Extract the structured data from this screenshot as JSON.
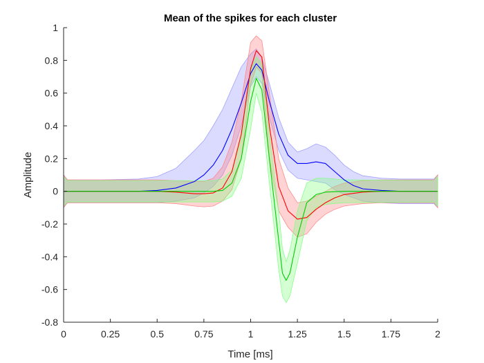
{
  "chart_data": {
    "type": "line",
    "title": "Mean of the spikes for each cluster",
    "xlabel": "Time [ms]",
    "ylabel": "Amplitude",
    "xlim": [
      0,
      2
    ],
    "ylim": [
      -0.8,
      1
    ],
    "xticks": [
      0,
      0.25,
      0.5,
      0.75,
      1,
      1.25,
      1.5,
      1.75,
      2
    ],
    "xtick_labels": [
      "0",
      "0.25",
      "0.5",
      "0.75",
      "1",
      "1.25",
      "1.5",
      "1.75",
      "2"
    ],
    "yticks": [
      -0.8,
      -0.6,
      -0.4,
      -0.2,
      0,
      0.2,
      0.4,
      0.6,
      0.8,
      1
    ],
    "ytick_labels": [
      "-0.8",
      "-0.6",
      "-0.4",
      "-0.2",
      "0",
      "0.2",
      "0.4",
      "0.6",
      "0.8",
      "1"
    ],
    "grid": false,
    "legend": "none",
    "series": [
      {
        "color": "#0000ff",
        "band_color": "#9999ff",
        "mean": [
          [
            0,
            0
          ],
          [
            0.2,
            0
          ],
          [
            0.4,
            0
          ],
          [
            0.5,
            0.005
          ],
          [
            0.6,
            0.02
          ],
          [
            0.7,
            0.06
          ],
          [
            0.75,
            0.1
          ],
          [
            0.8,
            0.16
          ],
          [
            0.85,
            0.25
          ],
          [
            0.9,
            0.38
          ],
          [
            0.95,
            0.54
          ],
          [
            1.0,
            0.72
          ],
          [
            1.03,
            0.78
          ],
          [
            1.06,
            0.74
          ],
          [
            1.1,
            0.55
          ],
          [
            1.15,
            0.35
          ],
          [
            1.2,
            0.22
          ],
          [
            1.25,
            0.17
          ],
          [
            1.3,
            0.17
          ],
          [
            1.35,
            0.18
          ],
          [
            1.4,
            0.17
          ],
          [
            1.45,
            0.12
          ],
          [
            1.5,
            0.07
          ],
          [
            1.55,
            0.035
          ],
          [
            1.6,
            0.015
          ],
          [
            1.7,
            0.005
          ],
          [
            1.8,
            0
          ],
          [
            2.0,
            0
          ]
        ],
        "upper": [
          [
            0,
            0.1
          ],
          [
            0.02,
            0.07
          ],
          [
            0.2,
            0.07
          ],
          [
            0.4,
            0.075
          ],
          [
            0.5,
            0.09
          ],
          [
            0.6,
            0.14
          ],
          [
            0.7,
            0.25
          ],
          [
            0.75,
            0.31
          ],
          [
            0.8,
            0.4
          ],
          [
            0.85,
            0.5
          ],
          [
            0.9,
            0.63
          ],
          [
            0.95,
            0.76
          ],
          [
            1.0,
            0.84
          ],
          [
            1.03,
            0.87
          ],
          [
            1.06,
            0.82
          ],
          [
            1.1,
            0.66
          ],
          [
            1.15,
            0.45
          ],
          [
            1.2,
            0.3
          ],
          [
            1.25,
            0.24
          ],
          [
            1.3,
            0.26
          ],
          [
            1.35,
            0.29
          ],
          [
            1.4,
            0.27
          ],
          [
            1.45,
            0.22
          ],
          [
            1.5,
            0.16
          ],
          [
            1.55,
            0.12
          ],
          [
            1.6,
            0.095
          ],
          [
            1.7,
            0.08
          ],
          [
            1.8,
            0.075
          ],
          [
            1.98,
            0.075
          ],
          [
            2.0,
            0.1
          ]
        ],
        "lower": [
          [
            0,
            -0.1
          ],
          [
            0.02,
            -0.07
          ],
          [
            0.2,
            -0.07
          ],
          [
            0.4,
            -0.07
          ],
          [
            0.5,
            -0.07
          ],
          [
            0.6,
            -0.06
          ],
          [
            0.7,
            -0.04
          ],
          [
            0.75,
            -0.01
          ],
          [
            0.8,
            0.03
          ],
          [
            0.85,
            0.1
          ],
          [
            0.9,
            0.22
          ],
          [
            0.95,
            0.4
          ],
          [
            1.0,
            0.64
          ],
          [
            1.03,
            0.7
          ],
          [
            1.06,
            0.66
          ],
          [
            1.1,
            0.45
          ],
          [
            1.15,
            0.25
          ],
          [
            1.2,
            0.13
          ],
          [
            1.25,
            0.08
          ],
          [
            1.3,
            0.07
          ],
          [
            1.35,
            0.06
          ],
          [
            1.4,
            0.05
          ],
          [
            1.45,
            0.01
          ],
          [
            1.5,
            -0.02
          ],
          [
            1.55,
            -0.04
          ],
          [
            1.6,
            -0.06
          ],
          [
            1.7,
            -0.07
          ],
          [
            1.8,
            -0.075
          ],
          [
            1.98,
            -0.075
          ],
          [
            2.0,
            -0.1
          ]
        ]
      },
      {
        "color": "#ff0000",
        "band_color": "#ff8080",
        "mean": [
          [
            0,
            0
          ],
          [
            0.5,
            0
          ],
          [
            0.6,
            -0.005
          ],
          [
            0.7,
            -0.015
          ],
          [
            0.75,
            -0.015
          ],
          [
            0.8,
            -0.01
          ],
          [
            0.85,
            0.02
          ],
          [
            0.9,
            0.12
          ],
          [
            0.95,
            0.35
          ],
          [
            1.0,
            0.75
          ],
          [
            1.03,
            0.86
          ],
          [
            1.06,
            0.82
          ],
          [
            1.1,
            0.4
          ],
          [
            1.15,
            0.03
          ],
          [
            1.2,
            -0.12
          ],
          [
            1.25,
            -0.17
          ],
          [
            1.3,
            -0.16
          ],
          [
            1.35,
            -0.11
          ],
          [
            1.4,
            -0.07
          ],
          [
            1.45,
            -0.04
          ],
          [
            1.5,
            -0.02
          ],
          [
            1.6,
            -0.005
          ],
          [
            1.7,
            0
          ],
          [
            2.0,
            0
          ]
        ],
        "upper": [
          [
            0,
            0.1
          ],
          [
            0.02,
            0.07
          ],
          [
            0.5,
            0.07
          ],
          [
            0.6,
            0.065
          ],
          [
            0.7,
            0.06
          ],
          [
            0.75,
            0.06
          ],
          [
            0.8,
            0.08
          ],
          [
            0.85,
            0.15
          ],
          [
            0.9,
            0.3
          ],
          [
            0.95,
            0.55
          ],
          [
            1.0,
            0.91
          ],
          [
            1.03,
            0.95
          ],
          [
            1.06,
            0.92
          ],
          [
            1.1,
            0.6
          ],
          [
            1.15,
            0.2
          ],
          [
            1.2,
            0.02
          ],
          [
            1.25,
            -0.07
          ],
          [
            1.3,
            -0.06
          ],
          [
            1.35,
            -0.03
          ],
          [
            1.4,
            0.0
          ],
          [
            1.45,
            0.03
          ],
          [
            1.5,
            0.05
          ],
          [
            1.6,
            0.065
          ],
          [
            1.7,
            0.07
          ],
          [
            1.98,
            0.07
          ],
          [
            2.0,
            0.1
          ]
        ],
        "lower": [
          [
            0,
            -0.1
          ],
          [
            0.02,
            -0.07
          ],
          [
            0.5,
            -0.07
          ],
          [
            0.6,
            -0.075
          ],
          [
            0.7,
            -0.09
          ],
          [
            0.75,
            -0.095
          ],
          [
            0.8,
            -0.09
          ],
          [
            0.85,
            -0.06
          ],
          [
            0.9,
            0.01
          ],
          [
            0.95,
            0.2
          ],
          [
            1.0,
            0.65
          ],
          [
            1.03,
            0.76
          ],
          [
            1.06,
            0.72
          ],
          [
            1.1,
            0.2
          ],
          [
            1.15,
            -0.12
          ],
          [
            1.2,
            -0.22
          ],
          [
            1.25,
            -0.28
          ],
          [
            1.3,
            -0.26
          ],
          [
            1.35,
            -0.19
          ],
          [
            1.4,
            -0.14
          ],
          [
            1.45,
            -0.11
          ],
          [
            1.5,
            -0.09
          ],
          [
            1.6,
            -0.075
          ],
          [
            1.7,
            -0.07
          ],
          [
            1.98,
            -0.07
          ],
          [
            2.0,
            -0.1
          ]
        ]
      },
      {
        "color": "#00cc00",
        "band_color": "#80ff80",
        "mean": [
          [
            0,
            0
          ],
          [
            0.5,
            0
          ],
          [
            0.8,
            0
          ],
          [
            0.85,
            0.005
          ],
          [
            0.9,
            0.05
          ],
          [
            0.95,
            0.2
          ],
          [
            1.0,
            0.55
          ],
          [
            1.03,
            0.69
          ],
          [
            1.06,
            0.62
          ],
          [
            1.1,
            0.2
          ],
          [
            1.15,
            -0.3
          ],
          [
            1.17,
            -0.5
          ],
          [
            1.19,
            -0.545
          ],
          [
            1.21,
            -0.5
          ],
          [
            1.25,
            -0.28
          ],
          [
            1.3,
            -0.07
          ],
          [
            1.35,
            -0.02
          ],
          [
            1.4,
            -0.005
          ],
          [
            1.5,
            0
          ],
          [
            2.0,
            0
          ]
        ],
        "upper": [
          [
            0,
            0.09
          ],
          [
            0.02,
            0.065
          ],
          [
            0.5,
            0.065
          ],
          [
            0.8,
            0.065
          ],
          [
            0.85,
            0.075
          ],
          [
            0.9,
            0.13
          ],
          [
            0.95,
            0.32
          ],
          [
            1.0,
            0.74
          ],
          [
            1.03,
            0.82
          ],
          [
            1.06,
            0.78
          ],
          [
            1.1,
            0.35
          ],
          [
            1.15,
            -0.12
          ],
          [
            1.17,
            -0.35
          ],
          [
            1.19,
            -0.43
          ],
          [
            1.21,
            -0.36
          ],
          [
            1.25,
            -0.12
          ],
          [
            1.3,
            0.05
          ],
          [
            1.35,
            0.08
          ],
          [
            1.4,
            0.08
          ],
          [
            1.5,
            0.07
          ],
          [
            1.98,
            0.065
          ],
          [
            2.0,
            0.09
          ]
        ],
        "lower": [
          [
            0,
            -0.09
          ],
          [
            0.02,
            -0.065
          ],
          [
            0.5,
            -0.065
          ],
          [
            0.8,
            -0.065
          ],
          [
            0.85,
            -0.06
          ],
          [
            0.9,
            -0.03
          ],
          [
            0.95,
            0.08
          ],
          [
            1.0,
            0.38
          ],
          [
            1.03,
            0.6
          ],
          [
            1.06,
            0.48
          ],
          [
            1.1,
            0.05
          ],
          [
            1.15,
            -0.48
          ],
          [
            1.17,
            -0.64
          ],
          [
            1.19,
            -0.68
          ],
          [
            1.21,
            -0.64
          ],
          [
            1.25,
            -0.44
          ],
          [
            1.3,
            -0.18
          ],
          [
            1.35,
            -0.1
          ],
          [
            1.4,
            -0.08
          ],
          [
            1.5,
            -0.07
          ],
          [
            1.98,
            -0.065
          ],
          [
            2.0,
            -0.09
          ]
        ]
      }
    ]
  }
}
